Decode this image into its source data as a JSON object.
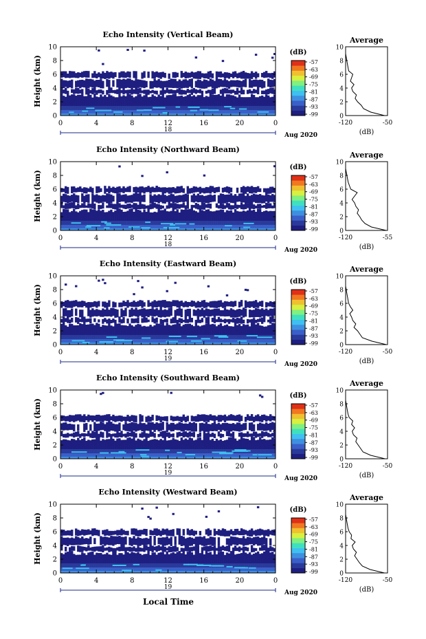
{
  "colors": {
    "scale": [
      "#1e1e80",
      "#2a3a9a",
      "#3a5fc8",
      "#3f8fe0",
      "#3fc0f0",
      "#3fe0c0",
      "#80f080",
      "#d8f040",
      "#f0c030",
      "#f07820",
      "#e03018"
    ],
    "background": "#ffffff"
  },
  "common": {
    "ylabel": "Height (km)",
    "xlabel": "Local Time",
    "unit": "(dB)",
    "avg_title": "Average",
    "month": "Aug 2020",
    "xticks": [
      "0",
      "4",
      "8",
      "12",
      "16",
      "20",
      "0"
    ],
    "yticks": [
      "0",
      "2",
      "4",
      "6",
      "8",
      "10"
    ],
    "colorbar_ticks": [
      "-57",
      "-63",
      "-69",
      "-75",
      "-81",
      "-87",
      "-93",
      "-99"
    ]
  },
  "chart_data": [
    {
      "type": "heatmap",
      "title": "Echo Intensity (Vertical Beam)",
      "day": "18",
      "ylabel": "Height (km)",
      "xlim": [
        0,
        24
      ],
      "ylim": [
        0,
        10
      ],
      "zlim": [
        -99,
        -57
      ],
      "profile": {
        "title": "Average",
        "xlabel": "(dB)",
        "xlim": [
          -120,
          -50
        ],
        "xticks": [
          "-120",
          "-50"
        ],
        "height": [
          0,
          0.5,
          1,
          1.5,
          2,
          2.5,
          3,
          3.5,
          4,
          4.5,
          5,
          5.5,
          6,
          6.5,
          7,
          7.5,
          8,
          8.5,
          9,
          9.5,
          10
        ],
        "value": [
          -55,
          -78,
          -90,
          -94,
          -100,
          -104,
          -102,
          -108,
          -110,
          -106,
          -112,
          -110,
          -108,
          -115,
          -116,
          -117,
          -118,
          -119,
          -120,
          -120,
          -120
        ]
      }
    },
    {
      "type": "heatmap",
      "title": "Echo Intensity (Northward Beam)",
      "day": "18",
      "ylabel": "Height (km)",
      "xlim": [
        0,
        24
      ],
      "ylim": [
        0,
        10
      ],
      "zlim": [
        -99,
        -57
      ],
      "profile": {
        "title": "Average",
        "xlabel": "(dB)",
        "xlim": [
          -120,
          -55
        ],
        "xticks": [
          "-120",
          "-55"
        ],
        "height": [
          0,
          0.5,
          1,
          1.5,
          2,
          2.5,
          3,
          3.5,
          4,
          4.5,
          5,
          5.5,
          6,
          6.5,
          7,
          7.5,
          8,
          8.5,
          9,
          9.5,
          10
        ],
        "value": [
          -57,
          -80,
          -90,
          -95,
          -98,
          -102,
          -100,
          -104,
          -106,
          -110,
          -106,
          -102,
          -112,
          -114,
          -116,
          -117,
          -118,
          -119,
          -120,
          -120,
          -120
        ]
      }
    },
    {
      "type": "heatmap",
      "title": "Echo Intensity (Eastward Beam)",
      "day": "19",
      "ylabel": "Height (km)",
      "xlim": [
        0,
        24
      ],
      "ylim": [
        0,
        10
      ],
      "zlim": [
        -99,
        -57
      ],
      "profile": {
        "title": "Average",
        "xlabel": "(dB)",
        "xlim": [
          -120,
          -50
        ],
        "xticks": [
          "-120",
          "-50"
        ],
        "height": [
          0,
          0.5,
          1,
          1.5,
          2,
          2.5,
          3,
          3.5,
          4,
          4.5,
          5,
          5.5,
          6,
          6.5,
          7,
          7.5,
          8,
          8.5,
          9,
          9.5,
          10
        ],
        "value": [
          -52,
          -76,
          -92,
          -96,
          -100,
          -106,
          -103,
          -108,
          -110,
          -113,
          -108,
          -112,
          -115,
          -116,
          -117,
          -118,
          -119,
          -120,
          -120,
          -120,
          -120
        ]
      }
    },
    {
      "type": "heatmap",
      "title": "Echo Intensity (Southward Beam)",
      "day": "19",
      "ylabel": "Height (km)",
      "xlim": [
        0,
        24
      ],
      "ylim": [
        0,
        10
      ],
      "zlim": [
        -99,
        -57
      ],
      "profile": {
        "title": "Average",
        "xlabel": "(dB)",
        "xlim": [
          -120,
          -50
        ],
        "xticks": [
          "-120",
          "-50"
        ],
        "height": [
          0,
          0.5,
          1,
          1.5,
          2,
          2.5,
          3,
          3.5,
          4,
          4.5,
          5,
          5.5,
          6,
          6.5,
          7,
          7.5,
          8,
          8.5,
          9,
          9.5,
          10
        ],
        "value": [
          -54,
          -78,
          -91,
          -95,
          -99,
          -103,
          -101,
          -107,
          -109,
          -105,
          -110,
          -108,
          -114,
          -116,
          -117,
          -118,
          -119,
          -120,
          -120,
          -120,
          -120
        ]
      }
    },
    {
      "type": "heatmap",
      "title": "Echo Intensity (Westward Beam)",
      "day": "19",
      "ylabel": "Height (km)",
      "xlim": [
        0,
        24
      ],
      "ylim": [
        0,
        10
      ],
      "zlim": [
        -99,
        -57
      ],
      "profile": {
        "title": "Average",
        "xlabel": "(dB)",
        "xlim": [
          -120,
          -50
        ],
        "xticks": [
          "-120",
          "-50"
        ],
        "height": [
          0,
          0.5,
          1,
          1.5,
          2,
          2.5,
          3,
          3.5,
          4,
          4.5,
          5,
          5.5,
          6,
          6.5,
          7,
          7.5,
          8,
          8.5,
          9,
          9.5,
          10
        ],
        "value": [
          -55,
          -79,
          -92,
          -97,
          -101,
          -105,
          -102,
          -107,
          -109,
          -104,
          -111,
          -110,
          -114,
          -116,
          -117,
          -118,
          -119,
          -120,
          -120,
          -120,
          -120
        ]
      }
    }
  ]
}
